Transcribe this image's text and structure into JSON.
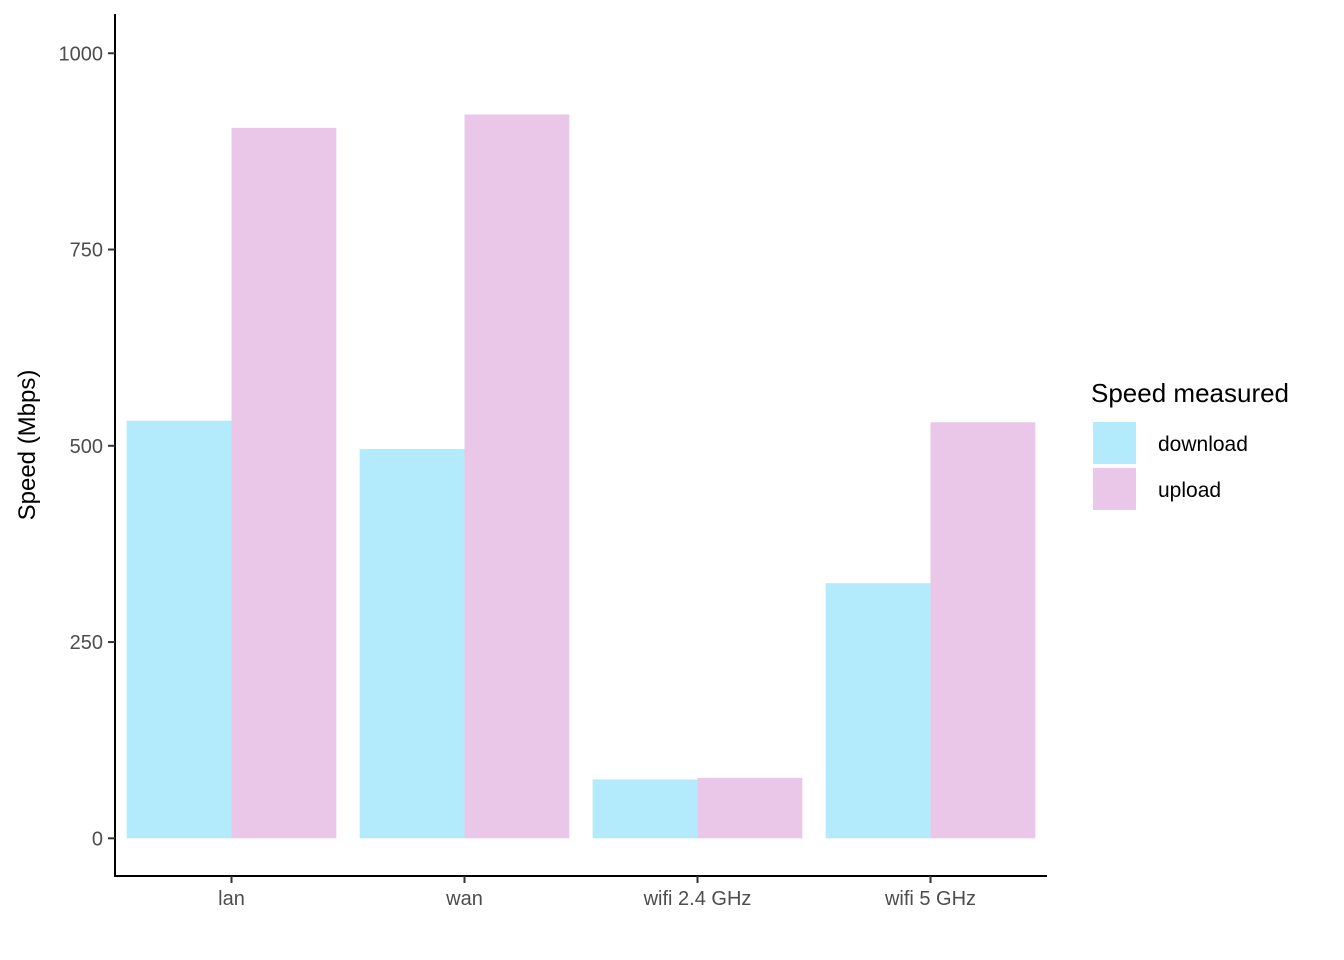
{
  "chart_data": {
    "type": "bar",
    "categories": [
      "lan",
      "wan",
      "wifi 2.4 GHz",
      "wifi 5 GHz"
    ],
    "series": [
      {
        "name": "download",
        "color": "#b3ebfc",
        "values": [
          532,
          496,
          75,
          325
        ]
      },
      {
        "name": "upload",
        "color": "#eac7e9",
        "values": [
          905,
          922,
          77,
          530
        ]
      }
    ],
    "title": "",
    "xlabel": "",
    "ylabel": "Speed (Mbps)",
    "ylim": [
      -48,
      1050
    ],
    "yticks": [
      0,
      250,
      500,
      750,
      1000
    ],
    "ytick_labels": [
      "0",
      "250",
      "500",
      "750",
      "1000"
    ],
    "grid": false,
    "legend": {
      "title": "Speed measured",
      "position": "right"
    }
  }
}
